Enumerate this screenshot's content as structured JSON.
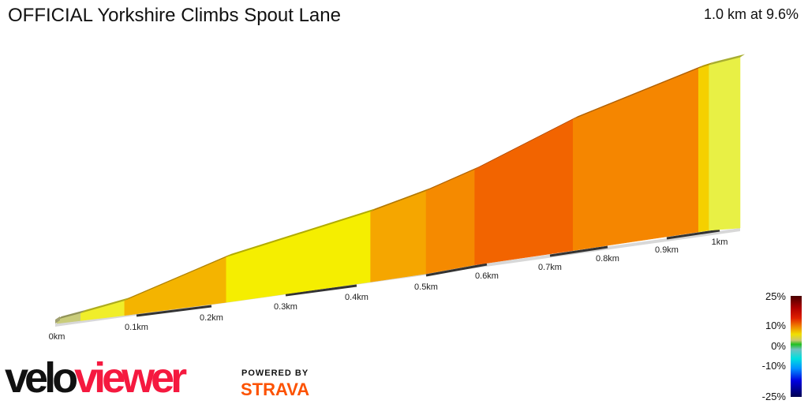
{
  "header": {
    "title": "OFFICIAL Yorkshire Climbs Spout Lane",
    "summary": "1.0 km at 9.6%"
  },
  "chart_data": {
    "type": "area",
    "x_unit": "km",
    "tick_labels": [
      "0km",
      "0.1km",
      "0.2km",
      "0.3km",
      "0.4km",
      "0.5km",
      "0.6km",
      "0.7km",
      "0.8km",
      "0.9km",
      "1km"
    ],
    "profile": [
      {
        "km": 0,
        "elev": 0
      },
      {
        "km": 0.03,
        "elev": 2
      },
      {
        "km": 0.085,
        "elev": 6
      },
      {
        "km": 0.22,
        "elev": 23
      },
      {
        "km": 0.42,
        "elev": 37
      },
      {
        "km": 0.5,
        "elev": 44
      },
      {
        "km": 0.58,
        "elev": 51
      },
      {
        "km": 0.74,
        "elev": 71
      },
      {
        "km": 0.96,
        "elev": 89
      },
      {
        "km": 0.98,
        "elev": 90
      },
      {
        "km": 1.03,
        "elev": 93
      }
    ],
    "segment_colors": [
      "#c9cc7a",
      "#f0ee2a",
      "#f4b400",
      "#f5ee00",
      "#f5a600",
      "#f58a00",
      "#f26400",
      "#f58600",
      "#f5d000",
      "#e8f045"
    ],
    "legend": {
      "labels": [
        "25%",
        "10%",
        "0%",
        "-10%",
        "-25%"
      ],
      "range": [
        -25,
        25
      ]
    }
  },
  "branding": {
    "logo_a": "velo",
    "logo_b": "viewer",
    "powered": "POWERED BY",
    "strava": "STRAVA"
  }
}
